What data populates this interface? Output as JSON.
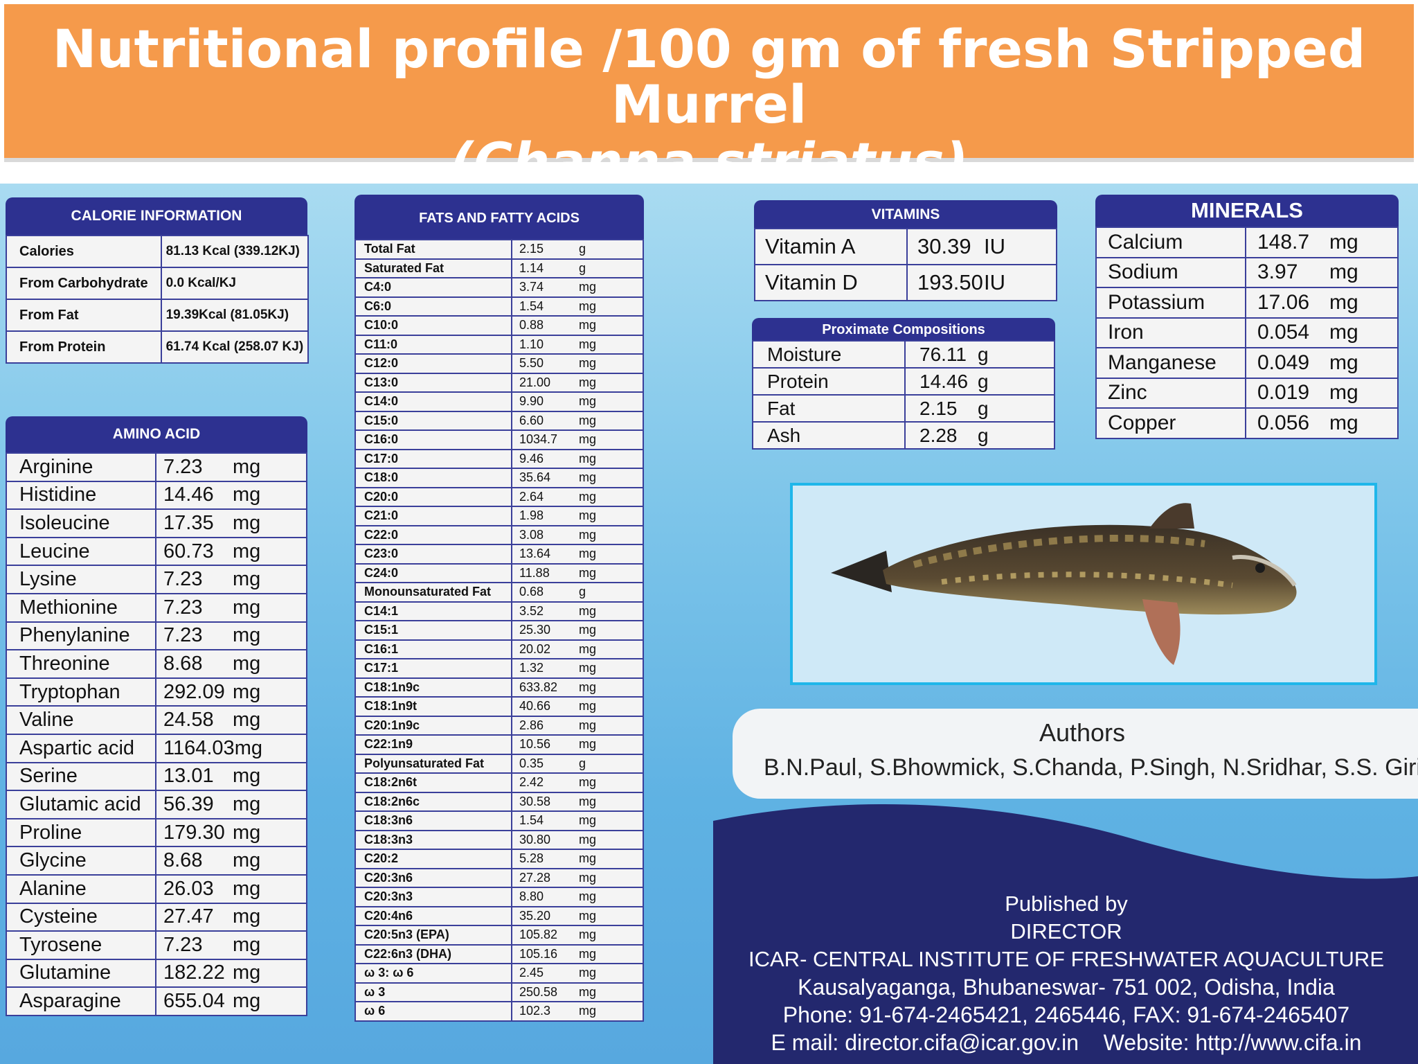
{
  "title": {
    "line1": "Nutritional profile /100 gm of fresh Stripped Murrel",
    "line2": "(Channa striatus)"
  },
  "calorie": {
    "heading": "CALORIE INFORMATION",
    "rows": [
      {
        "label": "Calories",
        "value": "81.13 Kcal (339.12KJ)"
      },
      {
        "label": "From Carbohydrate",
        "value": "0.0 Kcal/KJ"
      },
      {
        "label": "From Fat",
        "value": "19.39Kcal (81.05KJ)"
      },
      {
        "label": "From Protein",
        "value": "61.74 Kcal (258.07 KJ)"
      }
    ]
  },
  "amino": {
    "heading": "AMINO ACID",
    "rows": [
      {
        "label": "Arginine",
        "value": "7.23",
        "unit": "mg"
      },
      {
        "label": "Histidine",
        "value": "14.46",
        "unit": "mg"
      },
      {
        "label": "Isoleucine",
        "value": "17.35",
        "unit": "mg"
      },
      {
        "label": "Leucine",
        "value": "60.73",
        "unit": "mg"
      },
      {
        "label": "Lysine",
        "value": "7.23",
        "unit": "mg"
      },
      {
        "label": "Methionine",
        "value": "7.23",
        "unit": "mg"
      },
      {
        "label": "Phenylanine",
        "value": "7.23",
        "unit": "mg"
      },
      {
        "label": "Threonine",
        "value": "8.68",
        "unit": "mg"
      },
      {
        "label": "Tryptophan",
        "value": "292.09",
        "unit": "mg"
      },
      {
        "label": "Valine",
        "value": "24.58",
        "unit": "mg"
      },
      {
        "label": "Aspartic acid",
        "value": "1164.03",
        "unit": "mg"
      },
      {
        "label": "Serine",
        "value": "13.01",
        "unit": "mg"
      },
      {
        "label": "Glutamic acid",
        "value": "56.39",
        "unit": "mg"
      },
      {
        "label": "Proline",
        "value": "179.30",
        "unit": "mg"
      },
      {
        "label": "Glycine",
        "value": "8.68",
        "unit": "mg"
      },
      {
        "label": "Alanine",
        "value": "26.03",
        "unit": "mg"
      },
      {
        "label": "Cysteine",
        "value": "27.47",
        "unit": "mg"
      },
      {
        "label": "Tyrosene",
        "value": "7.23",
        "unit": "mg"
      },
      {
        "label": "Glutamine",
        "value": "182.22",
        "unit": "mg"
      },
      {
        "label": "Asparagine",
        "value": "655.04",
        "unit": "mg"
      }
    ]
  },
  "fats": {
    "heading": "FATS AND FATTY ACIDS",
    "rows": [
      {
        "label": "Total Fat",
        "value": "2.15",
        "unit": "g"
      },
      {
        "label": "Saturated Fat",
        "value": "1.14",
        "unit": "g"
      },
      {
        "label": "C4:0",
        "value": "3.74",
        "unit": "mg"
      },
      {
        "label": "C6:0",
        "value": "1.54",
        "unit": "mg"
      },
      {
        "label": "C10:0",
        "value": "0.88",
        "unit": "mg"
      },
      {
        "label": "C11:0",
        "value": "1.10",
        "unit": "mg"
      },
      {
        "label": "C12:0",
        "value": "5.50",
        "unit": "mg"
      },
      {
        "label": "C13:0",
        "value": "21.00",
        "unit": "mg"
      },
      {
        "label": "C14:0",
        "value": "9.90",
        "unit": "mg"
      },
      {
        "label": "C15:0",
        "value": "6.60",
        "unit": "mg"
      },
      {
        "label": "C16:0",
        "value": "1034.7",
        "unit": "mg"
      },
      {
        "label": "C17:0",
        "value": "9.46",
        "unit": "mg"
      },
      {
        "label": "C18:0",
        "value": "35.64",
        "unit": "mg"
      },
      {
        "label": "C20:0",
        "value": "2.64",
        "unit": "mg"
      },
      {
        "label": "C21:0",
        "value": "1.98",
        "unit": "mg"
      },
      {
        "label": "C22:0",
        "value": "3.08",
        "unit": "mg"
      },
      {
        "label": "C23:0",
        "value": "13.64",
        "unit": "mg"
      },
      {
        "label": "C24:0",
        "value": "11.88",
        "unit": "mg"
      },
      {
        "label": "Monounsaturated Fat",
        "value": "0.68",
        "unit": "g"
      },
      {
        "label": "C14:1",
        "value": "3.52",
        "unit": "mg"
      },
      {
        "label": "C15:1",
        "value": "25.30",
        "unit": "mg"
      },
      {
        "label": "C16:1",
        "value": "20.02",
        "unit": "mg"
      },
      {
        "label": "C17:1",
        "value": "1.32",
        "unit": "mg"
      },
      {
        "label": "C18:1n9c",
        "value": "633.82",
        "unit": "mg"
      },
      {
        "label": "C18:1n9t",
        "value": "40.66",
        "unit": "mg"
      },
      {
        "label": "C20:1n9c",
        "value": "2.86",
        "unit": "mg"
      },
      {
        "label": "C22:1n9",
        "value": "10.56",
        "unit": "mg"
      },
      {
        "label": "Polyunsaturated Fat",
        "value": "0.35",
        "unit": "g"
      },
      {
        "label": "C18:2n6t",
        "value": "2.42",
        "unit": "mg"
      },
      {
        "label": "C18:2n6c",
        "value": "30.58",
        "unit": "mg"
      },
      {
        "label": "C18:3n6",
        "value": "1.54",
        "unit": "mg"
      },
      {
        "label": "C18:3n3",
        "value": "30.80",
        "unit": "mg"
      },
      {
        "label": "C20:2",
        "value": "5.28",
        "unit": "mg"
      },
      {
        "label": "C20:3n6",
        "value": "27.28",
        "unit": "mg"
      },
      {
        "label": "C20:3n3",
        "value": "8.80",
        "unit": "mg"
      },
      {
        "label": "C20:4n6",
        "value": "35.20",
        "unit": "mg"
      },
      {
        "label": "C20:5n3 (EPA)",
        "value": "105.82",
        "unit": "mg"
      },
      {
        "label": "C22:6n3 (DHA)",
        "value": "105.16",
        "unit": "mg"
      },
      {
        "label": "ω 3: ω 6",
        "value": "2.45",
        "unit": "mg"
      },
      {
        "label": "ω 3",
        "value": "250.58",
        "unit": "mg"
      },
      {
        "label": "ω 6",
        "value": "102.3",
        "unit": "mg"
      }
    ]
  },
  "vitamins": {
    "heading": "VITAMINS",
    "rows": [
      {
        "label": "Vitamin A",
        "value": "30.39",
        "unit": "IU"
      },
      {
        "label": "Vitamin D",
        "value": "193.50",
        "unit": "IU"
      }
    ]
  },
  "proximate": {
    "heading": "Proximate Compositions",
    "rows": [
      {
        "label": "Moisture",
        "value": "76.11",
        "unit": "g"
      },
      {
        "label": "Protein",
        "value": "14.46",
        "unit": "g"
      },
      {
        "label": "Fat",
        "value": "2.15",
        "unit": "g"
      },
      {
        "label": "Ash",
        "value": "2.28",
        "unit": "g"
      }
    ]
  },
  "minerals": {
    "heading": "MINERALS",
    "rows": [
      {
        "label": "Calcium",
        "value": "148.7",
        "unit": "mg"
      },
      {
        "label": "Sodium",
        "value": "3.97",
        "unit": "mg"
      },
      {
        "label": "Potassium",
        "value": "17.06",
        "unit": "mg"
      },
      {
        "label": "Iron",
        "value": "0.054",
        "unit": "mg"
      },
      {
        "label": "Manganese",
        "value": "0.049",
        "unit": "mg"
      },
      {
        "label": "Zinc",
        "value": "0.019",
        "unit": "mg"
      },
      {
        "label": "Copper",
        "value": "0.056",
        "unit": "mg"
      }
    ]
  },
  "authors": {
    "title": "Authors",
    "names": "B.N.Paul, S.Bhowmick, S.Chanda, P.Singh, N.Sridhar, S.S. Giri"
  },
  "publisher": {
    "line1": "Published by",
    "line2": "DIRECTOR",
    "line3": "ICAR- CENTRAL INSTITUTE OF FRESHWATER AQUACULTURE",
    "line4": "Kausalyaganga, Bhubaneswar- 751 002, Odisha, India",
    "line5": "Phone: 91-674-2465421, 2465446, FAX: 91-674-2465407",
    "line6": "E mail: director.cifa@icar.gov.in    Website: http://www.cifa.in"
  },
  "colors": {
    "header_orange": "#f59a4b",
    "panel_navy": "#2d3190",
    "publisher_navy": "#23286e",
    "photo_border": "#1fb6ea"
  },
  "icons": [
    "fish-photo"
  ]
}
